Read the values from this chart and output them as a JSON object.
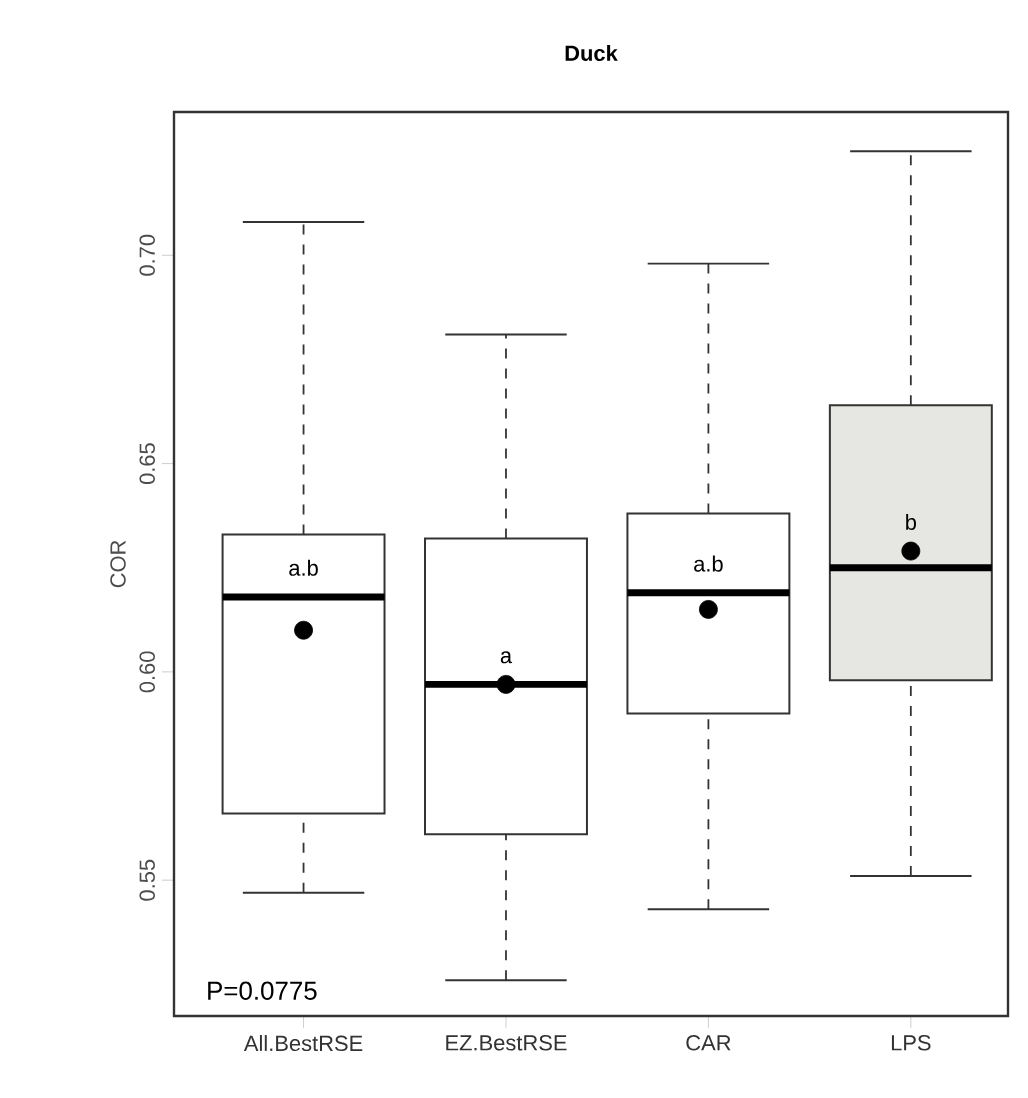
{
  "chart_data": {
    "type": "box",
    "title": "Duck",
    "ylabel": "COR",
    "categories": [
      "All.BestRSE",
      "EZ.BestRSE",
      "CAR",
      "LPS"
    ],
    "boxes": [
      {
        "low": 0.547,
        "q1": 0.566,
        "median": 0.618,
        "q3": 0.633,
        "high": 0.708,
        "mean": 0.61
      },
      {
        "low": 0.526,
        "q1": 0.561,
        "median": 0.597,
        "q3": 0.632,
        "high": 0.681,
        "mean": 0.597
      },
      {
        "low": 0.543,
        "q1": 0.59,
        "median": 0.619,
        "q3": 0.638,
        "high": 0.698,
        "mean": 0.615
      },
      {
        "low": 0.551,
        "q1": 0.598,
        "median": 0.625,
        "q3": 0.664,
        "high": 0.725,
        "mean": 0.629
      }
    ],
    "colors": [
      "#ffffff",
      "#ffffff",
      "#ffffff",
      "#e6e6e2"
    ],
    "ylim": [
      0.5174,
      0.7344
    ],
    "yticks": [
      {
        "value": 0.55,
        "label": "0.55"
      },
      {
        "value": 0.6,
        "label": "0.60"
      },
      {
        "value": 0.65,
        "label": "0.65"
      },
      {
        "value": 0.7,
        "label": "0.70"
      }
    ],
    "annotations": [
      "a.b",
      "a",
      "a.b",
      "b",
      "P=0.0775"
    ],
    "grid": false
  }
}
